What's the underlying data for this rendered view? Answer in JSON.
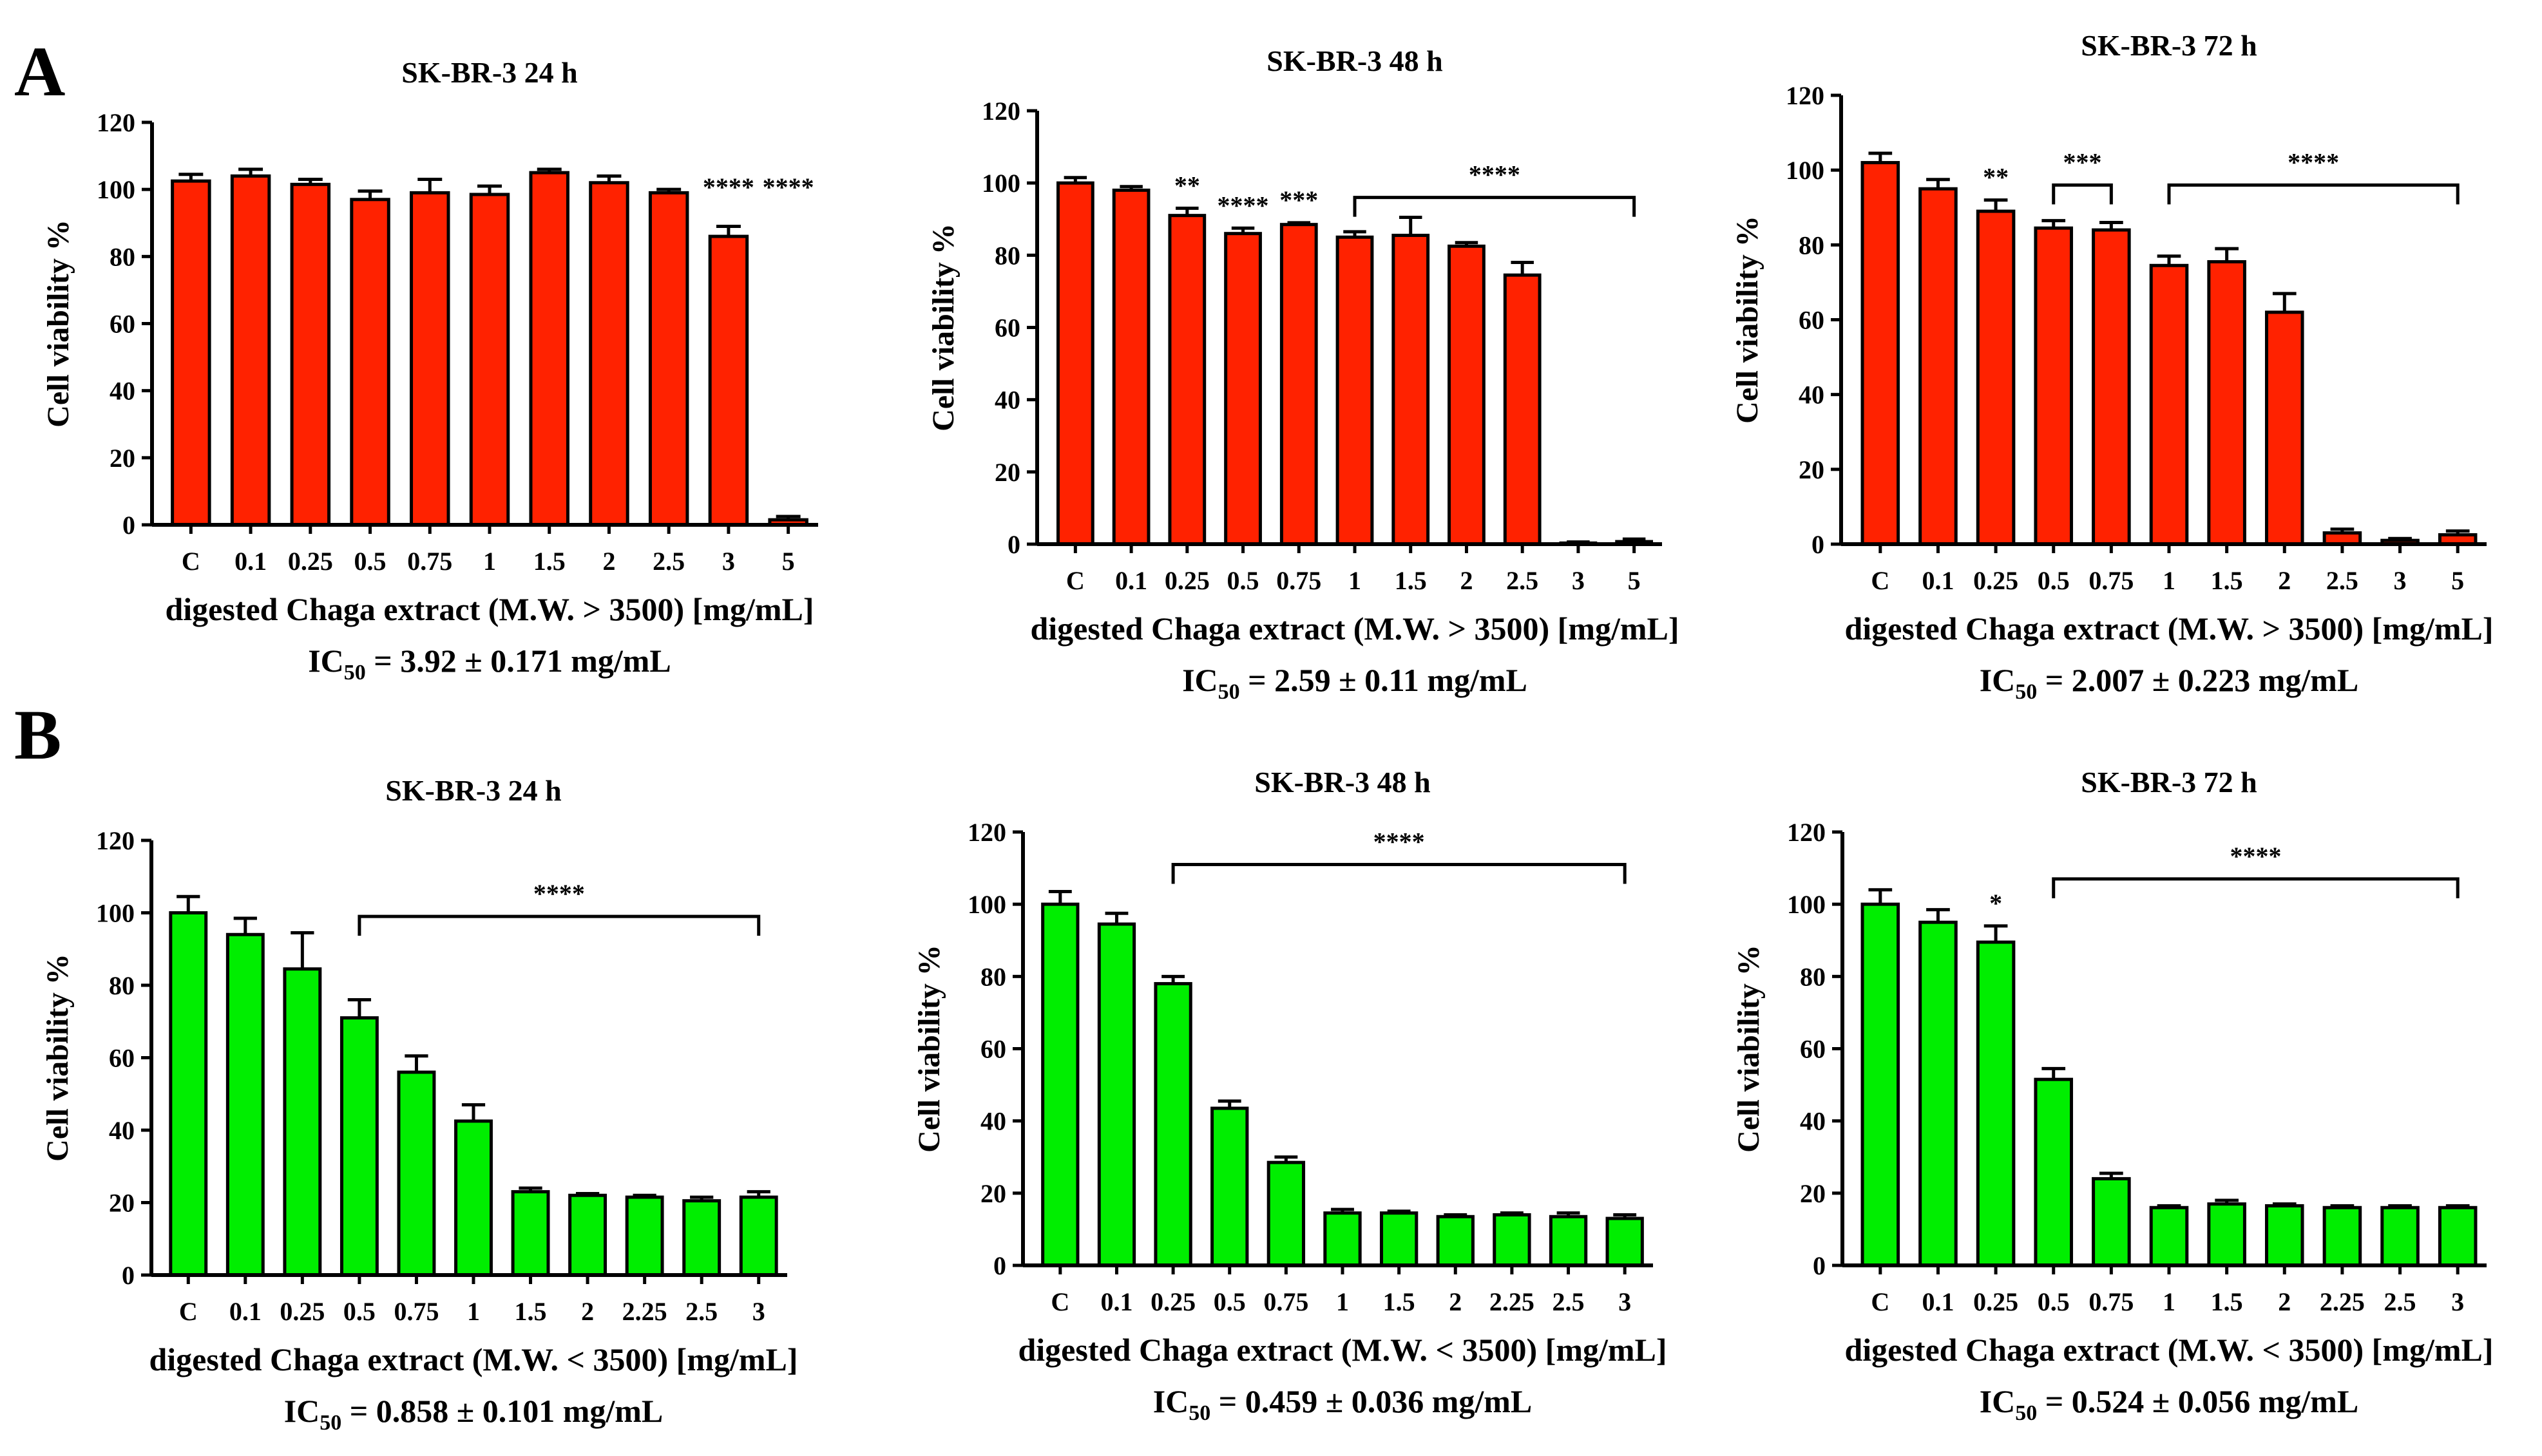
{
  "panel_labels": [
    "A",
    "B"
  ],
  "colors": {
    "red": "#ff2200",
    "green": "#00ee00",
    "axis": "#000000"
  },
  "chart_data": [
    {
      "type": "bar",
      "panel": "A",
      "row": 0,
      "col": 0,
      "title": "SK-BR-3 24 h",
      "categories": [
        "C",
        "0.1",
        "0.25",
        "0.5",
        "0.75",
        "1",
        "1.5",
        "2",
        "2.5",
        "3",
        "5"
      ],
      "values": [
        102.5,
        104,
        101.5,
        97,
        99,
        98.5,
        105,
        102,
        99,
        86,
        1.5
      ],
      "errors": [
        2,
        2,
        1.5,
        2.5,
        4,
        2.5,
        1,
        2,
        1,
        3,
        1
      ],
      "ylabel": "Cell viability %",
      "xlabel": "digested Chaga extract (M.W. > 3500) [mg/mL]",
      "ic50_prefix": "IC",
      "ic50_sub": "50",
      "ic50_text": " = 3.92 ± 0.171 mg/mL",
      "ylim": [
        0,
        120
      ],
      "yticks": [
        0,
        20,
        40,
        60,
        80,
        100,
        120
      ],
      "color": "red",
      "significance": [
        {
          "type": "star",
          "index": 9,
          "label": "****"
        },
        {
          "type": "star",
          "index": 10,
          "label": "****"
        }
      ]
    },
    {
      "type": "bar",
      "panel": "A",
      "row": 0,
      "col": 1,
      "title": "SK-BR-3 48 h",
      "categories": [
        "C",
        "0.1",
        "0.25",
        "0.5",
        "0.75",
        "1",
        "1.5",
        "2",
        "2.5",
        "3",
        "5"
      ],
      "values": [
        100,
        98,
        91,
        86,
        88.5,
        85,
        85.5,
        82.5,
        74.5,
        0.3,
        0.7
      ],
      "errors": [
        1.5,
        1,
        2,
        1.5,
        0.5,
        1.5,
        5,
        1,
        3.5,
        0.3,
        0.7
      ],
      "ylabel": "Cell viability %",
      "xlabel": "digested Chaga extract (M.W. > 3500) [mg/mL]",
      "ic50_prefix": "IC",
      "ic50_sub": "50",
      "ic50_text": " = 2.59 ± 0.11 mg/mL",
      "ylim": [
        0,
        120
      ],
      "yticks": [
        0,
        20,
        40,
        60,
        80,
        100,
        120
      ],
      "color": "red",
      "significance": [
        {
          "type": "star",
          "index": 2,
          "label": "**"
        },
        {
          "type": "star",
          "index": 3,
          "label": "****"
        },
        {
          "type": "star",
          "index": 4,
          "label": "***"
        },
        {
          "type": "bracket",
          "from": 5,
          "to": 10,
          "level": 96,
          "label": "****"
        }
      ]
    },
    {
      "type": "bar",
      "panel": "A",
      "row": 0,
      "col": 2,
      "title": "SK-BR-3 72 h",
      "categories": [
        "C",
        "0.1",
        "0.25",
        "0.5",
        "0.75",
        "1",
        "1.5",
        "2",
        "2.5",
        "3",
        "5"
      ],
      "values": [
        102,
        95,
        89,
        84.5,
        84,
        74.5,
        75.5,
        62,
        3,
        1,
        2.5
      ],
      "errors": [
        2.5,
        2.5,
        3,
        2,
        2,
        2.5,
        3.5,
        5,
        1,
        0.5,
        1
      ],
      "ylabel": "Cell viability %",
      "xlabel": "digested Chaga extract (M.W. > 3500) [mg/mL]",
      "ic50_prefix": "IC",
      "ic50_sub": "50",
      "ic50_text": " = 2.007 ± 0.223 mg/mL",
      "ylim": [
        0,
        120
      ],
      "yticks": [
        0,
        20,
        40,
        60,
        80,
        100,
        120
      ],
      "color": "red",
      "significance": [
        {
          "type": "star",
          "index": 2,
          "label": "**"
        },
        {
          "type": "bracket",
          "from": 3,
          "to": 4,
          "level": 96,
          "label": "***"
        },
        {
          "type": "bracket",
          "from": 5,
          "to": 10,
          "level": 96,
          "label": "****"
        }
      ]
    },
    {
      "type": "bar",
      "panel": "B",
      "row": 1,
      "col": 0,
      "title": "SK-BR-3 24 h",
      "categories": [
        "C",
        "0.1",
        "0.25",
        "0.5",
        "0.75",
        "1",
        "1.5",
        "2",
        "2.25",
        "2.5",
        "3"
      ],
      "values": [
        100,
        94,
        84.5,
        71,
        56,
        42.5,
        23,
        22,
        21.5,
        20.5,
        21.5
      ],
      "errors": [
        4.5,
        4.5,
        10,
        5,
        4.5,
        4.5,
        1,
        0.5,
        0.5,
        1,
        1.5
      ],
      "ylabel": "Cell viability %",
      "xlabel": "digested Chaga extract (M.W. < 3500) [mg/mL]",
      "ic50_prefix": "IC",
      "ic50_sub": "50",
      "ic50_text": " = 0.858 ± 0.101 mg/mL",
      "ylim": [
        0,
        120
      ],
      "yticks": [
        0,
        20,
        40,
        60,
        80,
        100,
        120
      ],
      "color": "green",
      "significance": [
        {
          "type": "bracket",
          "from": 3,
          "to": 10,
          "level": 99,
          "label": "****"
        }
      ]
    },
    {
      "type": "bar",
      "panel": "B",
      "row": 1,
      "col": 1,
      "title": "SK-BR-3 48 h",
      "categories": [
        "C",
        "0.1",
        "0.25",
        "0.5",
        "0.75",
        "1",
        "1.5",
        "2",
        "2.25",
        "2.5",
        "3"
      ],
      "values": [
        100,
        94.5,
        78,
        43.5,
        28.5,
        14.5,
        14.5,
        13.5,
        14,
        13.5,
        13
      ],
      "errors": [
        3.5,
        3,
        2,
        2,
        1.5,
        1,
        0.5,
        0.5,
        0.5,
        1,
        1
      ],
      "ylabel": "Cell viability %",
      "xlabel": "digested Chaga extract (M.W. <  3500) [mg/mL]",
      "ic50_prefix": "IC",
      "ic50_sub": "50",
      "ic50_text": " = 0.459 ± 0.036 mg/mL",
      "ylim": [
        0,
        120
      ],
      "yticks": [
        0,
        20,
        40,
        60,
        80,
        100,
        120
      ],
      "color": "green",
      "significance": [
        {
          "type": "bracket",
          "from": 2,
          "to": 10,
          "level": 111,
          "label": "****"
        }
      ]
    },
    {
      "type": "bar",
      "panel": "B",
      "row": 1,
      "col": 2,
      "title": "SK-BR-3 72 h",
      "categories": [
        "C",
        "0.1",
        "0.25",
        "0.5",
        "0.75",
        "1",
        "1.5",
        "2",
        "2.25",
        "2.5",
        "3"
      ],
      "values": [
        100,
        95,
        89.5,
        51.5,
        24,
        16,
        17,
        16.5,
        16,
        16,
        16
      ],
      "errors": [
        4,
        3.5,
        4.5,
        3,
        1.5,
        0.5,
        1,
        0.5,
        0.5,
        0.5,
        0.5
      ],
      "ylabel": "Cell viability %",
      "xlabel": "digested Chaga extract (M.W. < 3500) [mg/mL]",
      "ic50_prefix": "IC",
      "ic50_sub": "50",
      "ic50_text": " = 0.524 ± 0.056 mg/mL",
      "ylim": [
        0,
        120
      ],
      "yticks": [
        0,
        20,
        40,
        60,
        80,
        100,
        120
      ],
      "color": "green",
      "significance": [
        {
          "type": "star",
          "index": 2,
          "label": "*"
        },
        {
          "type": "bracket",
          "from": 3,
          "to": 10,
          "level": 107,
          "label": "****"
        }
      ]
    }
  ]
}
